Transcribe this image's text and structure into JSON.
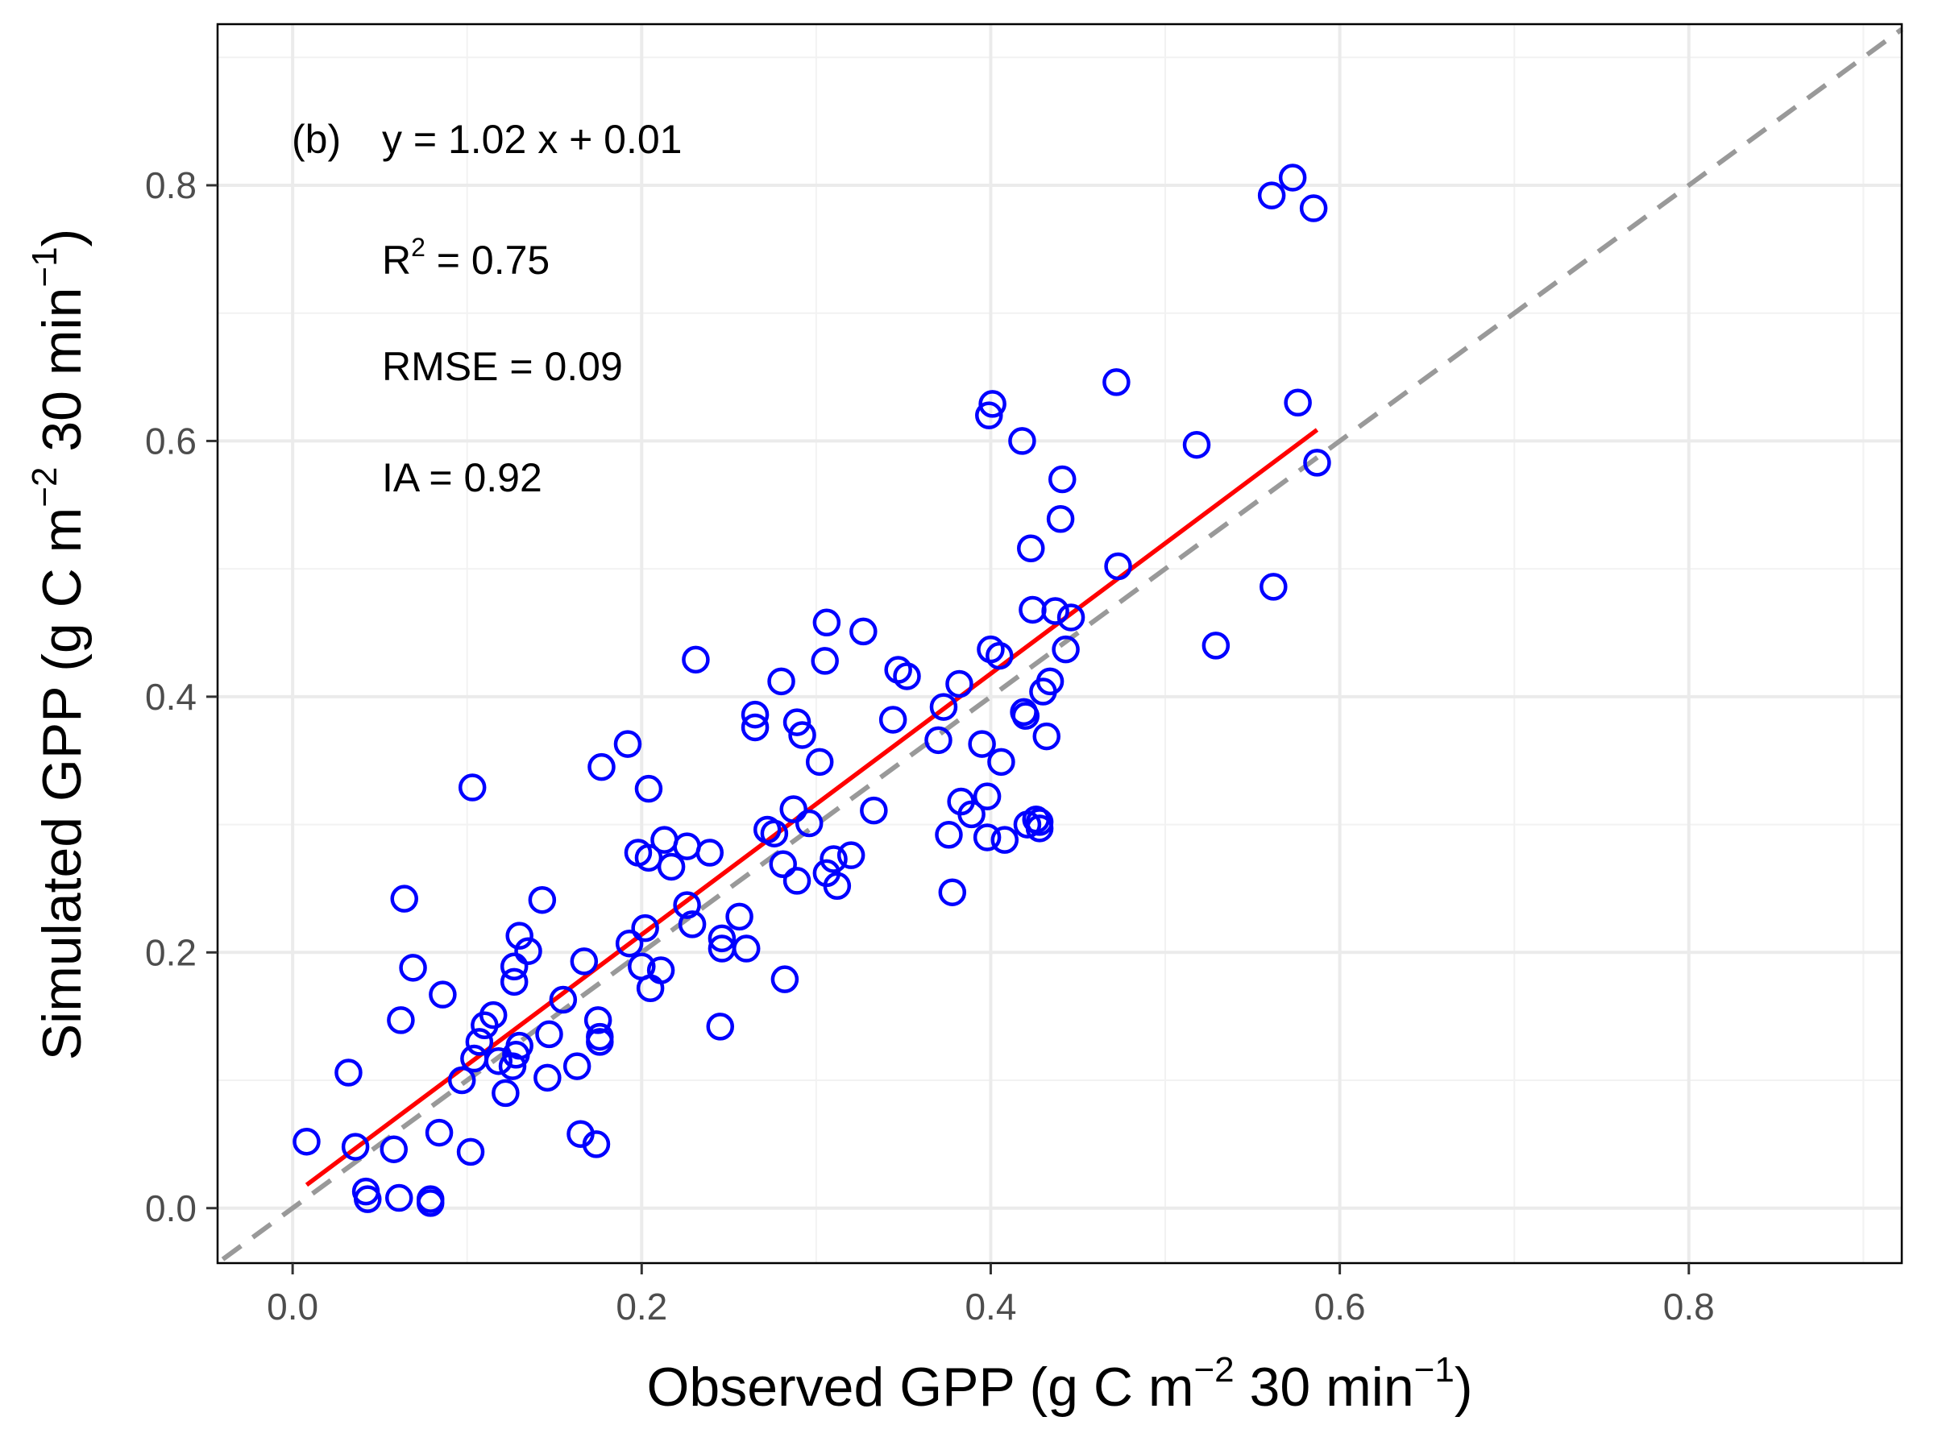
{
  "chart_data": {
    "type": "scatter",
    "panel_label": "(b)",
    "xlabel": {
      "main": "Observed GPP (g C m",
      "exp1": "−2",
      "mid": " 30 min",
      "exp2": "−1",
      "end": ")"
    },
    "ylabel": {
      "main": "Simulated GPP (g C m",
      "exp1": "−2",
      "mid": " 30 min",
      "exp2": "−1",
      "end": ")"
    },
    "xlim": [
      -0.043,
      0.922
    ],
    "ylim": [
      -0.043,
      0.926
    ],
    "x_ticks": [
      0.0,
      0.2,
      0.4,
      0.6,
      0.8
    ],
    "x_tick_labels": [
      "0.0",
      "0.2",
      "0.4",
      "0.6",
      "0.8"
    ],
    "y_ticks": [
      0.0,
      0.2,
      0.4,
      0.6,
      0.8
    ],
    "y_tick_labels": [
      "0.0",
      "0.2",
      "0.4",
      "0.6",
      "0.8"
    ],
    "grid": true,
    "annotations": {
      "equation": "y = 1.02 x + 0.01",
      "r2_prefix": "R",
      "r2_sup": "2",
      "r2_value": " = 0.75",
      "rmse": "RMSE = 0.09",
      "ia": "IA = 0.92"
    },
    "regression_line": {
      "slope": 1.02,
      "intercept": 0.01,
      "x_range": [
        0.008,
        0.587
      ],
      "color": "#ff0000"
    },
    "identity_line": {
      "color": "#999999",
      "x_range": [
        -0.04,
        0.922
      ]
    },
    "point_color": "#0000ff",
    "points": [
      [
        0.573,
        0.806
      ],
      [
        0.561,
        0.792
      ],
      [
        0.585,
        0.782
      ],
      [
        0.472,
        0.646
      ],
      [
        0.401,
        0.629
      ],
      [
        0.399,
        0.62
      ],
      [
        0.576,
        0.63
      ],
      [
        0.418,
        0.6
      ],
      [
        0.518,
        0.597
      ],
      [
        0.587,
        0.583
      ],
      [
        0.441,
        0.57
      ],
      [
        0.44,
        0.539
      ],
      [
        0.423,
        0.516
      ],
      [
        0.473,
        0.502
      ],
      [
        0.562,
        0.486
      ],
      [
        0.424,
        0.468
      ],
      [
        0.437,
        0.467
      ],
      [
        0.446,
        0.462
      ],
      [
        0.306,
        0.458
      ],
      [
        0.327,
        0.451
      ],
      [
        0.529,
        0.44
      ],
      [
        0.443,
        0.437
      ],
      [
        0.4,
        0.437
      ],
      [
        0.405,
        0.432
      ],
      [
        0.231,
        0.429
      ],
      [
        0.305,
        0.428
      ],
      [
        0.347,
        0.421
      ],
      [
        0.352,
        0.416
      ],
      [
        0.28,
        0.412
      ],
      [
        0.434,
        0.412
      ],
      [
        0.382,
        0.41
      ],
      [
        0.43,
        0.404
      ],
      [
        0.373,
        0.392
      ],
      [
        0.419,
        0.388
      ],
      [
        0.42,
        0.385
      ],
      [
        0.265,
        0.386
      ],
      [
        0.265,
        0.376
      ],
      [
        0.344,
        0.382
      ],
      [
        0.289,
        0.38
      ],
      [
        0.292,
        0.37
      ],
      [
        0.432,
        0.369
      ],
      [
        0.37,
        0.366
      ],
      [
        0.192,
        0.363
      ],
      [
        0.395,
        0.363
      ],
      [
        0.302,
        0.349
      ],
      [
        0.406,
        0.349
      ],
      [
        0.177,
        0.345
      ],
      [
        0.103,
        0.329
      ],
      [
        0.204,
        0.328
      ],
      [
        0.398,
        0.322
      ],
      [
        0.383,
        0.318
      ],
      [
        0.333,
        0.311
      ],
      [
        0.287,
        0.312
      ],
      [
        0.389,
        0.308
      ],
      [
        0.296,
        0.301
      ],
      [
        0.426,
        0.304
      ],
      [
        0.428,
        0.302
      ],
      [
        0.421,
        0.3
      ],
      [
        0.428,
        0.297
      ],
      [
        0.272,
        0.296
      ],
      [
        0.276,
        0.293
      ],
      [
        0.376,
        0.292
      ],
      [
        0.398,
        0.29
      ],
      [
        0.408,
        0.288
      ],
      [
        0.213,
        0.288
      ],
      [
        0.226,
        0.283
      ],
      [
        0.198,
        0.278
      ],
      [
        0.239,
        0.278
      ],
      [
        0.204,
        0.274
      ],
      [
        0.32,
        0.276
      ],
      [
        0.31,
        0.273
      ],
      [
        0.281,
        0.269
      ],
      [
        0.217,
        0.267
      ],
      [
        0.306,
        0.262
      ],
      [
        0.289,
        0.256
      ],
      [
        0.312,
        0.252
      ],
      [
        0.378,
        0.247
      ],
      [
        0.064,
        0.242
      ],
      [
        0.143,
        0.241
      ],
      [
        0.226,
        0.237
      ],
      [
        0.256,
        0.228
      ],
      [
        0.229,
        0.222
      ],
      [
        0.202,
        0.219
      ],
      [
        0.13,
        0.213
      ],
      [
        0.193,
        0.207
      ],
      [
        0.246,
        0.211
      ],
      [
        0.246,
        0.203
      ],
      [
        0.26,
        0.203
      ],
      [
        0.135,
        0.201
      ],
      [
        0.167,
        0.193
      ],
      [
        0.069,
        0.188
      ],
      [
        0.127,
        0.189
      ],
      [
        0.2,
        0.189
      ],
      [
        0.211,
        0.186
      ],
      [
        0.127,
        0.177
      ],
      [
        0.282,
        0.179
      ],
      [
        0.205,
        0.172
      ],
      [
        0.086,
        0.167
      ],
      [
        0.155,
        0.163
      ],
      [
        0.115,
        0.151
      ],
      [
        0.062,
        0.147
      ],
      [
        0.175,
        0.147
      ],
      [
        0.11,
        0.143
      ],
      [
        0.245,
        0.142
      ],
      [
        0.147,
        0.136
      ],
      [
        0.176,
        0.134
      ],
      [
        0.107,
        0.13
      ],
      [
        0.176,
        0.13
      ],
      [
        0.13,
        0.127
      ],
      [
        0.128,
        0.12
      ],
      [
        0.104,
        0.117
      ],
      [
        0.118,
        0.115
      ],
      [
        0.126,
        0.111
      ],
      [
        0.163,
        0.111
      ],
      [
        0.032,
        0.106
      ],
      [
        0.146,
        0.102
      ],
      [
        0.097,
        0.1
      ],
      [
        0.122,
        0.09
      ],
      [
        0.084,
        0.059
      ],
      [
        0.165,
        0.058
      ],
      [
        0.008,
        0.052
      ],
      [
        0.174,
        0.05
      ],
      [
        0.036,
        0.048
      ],
      [
        0.058,
        0.046
      ],
      [
        0.102,
        0.044
      ],
      [
        0.042,
        0.013
      ],
      [
        0.043,
        0.007
      ],
      [
        0.061,
        0.008
      ],
      [
        0.079,
        0.007
      ],
      [
        0.079,
        0.004
      ]
    ]
  }
}
